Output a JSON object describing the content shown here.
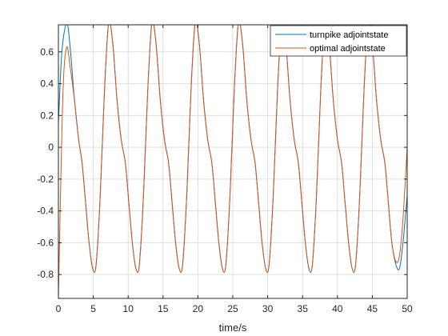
{
  "chart_data": {
    "type": "line",
    "title": "",
    "xlabel": "time/s",
    "ylabel": "",
    "xlim": [
      0,
      50
    ],
    "ylim": [
      -0.95,
      0.77
    ],
    "xticks": [
      0,
      5,
      10,
      15,
      20,
      25,
      30,
      35,
      40,
      45,
      50
    ],
    "yticks": [
      -0.8,
      -0.6,
      -0.4,
      -0.2,
      0,
      0.2,
      0.4,
      0.6
    ],
    "xtick_labels": [
      "0",
      "5",
      "10",
      "15",
      "20",
      "25",
      "30",
      "35",
      "40",
      "45",
      "50"
    ],
    "ytick_labels": [
      "-0.8",
      "-0.6",
      "-0.4",
      "-0.2",
      "0",
      "0.2",
      "0.4",
      "0.6"
    ],
    "grid": true,
    "legend_position": "top-right",
    "series": [
      {
        "name": "turnpike adjointstate",
        "color": "#0072BD",
        "points": [
          [
            0,
            0.15
          ],
          [
            0.5,
            0.6
          ],
          [
            1.2,
            0.78
          ],
          [
            1.7,
            0.62
          ],
          [
            2.3,
            0.3
          ],
          [
            2.9,
            0.05
          ],
          [
            3.4,
            -0.1
          ],
          [
            3.9,
            -0.35
          ],
          [
            4.4,
            -0.6
          ],
          [
            4.9,
            -0.76
          ],
          [
            5.4,
            -0.74
          ],
          [
            6.0,
            -0.3
          ],
          [
            6.6,
            0.35
          ],
          [
            7.2,
            0.78
          ],
          [
            7.8,
            0.65
          ],
          [
            8.4,
            0.3
          ],
          [
            9.0,
            0.05
          ],
          [
            9.6,
            -0.1
          ],
          [
            10.1,
            -0.35
          ],
          [
            10.6,
            -0.6
          ],
          [
            11.1,
            -0.76
          ],
          [
            11.6,
            -0.74
          ],
          [
            12.2,
            -0.3
          ],
          [
            12.8,
            0.35
          ],
          [
            13.4,
            0.78
          ],
          [
            14.0,
            0.65
          ],
          [
            14.6,
            0.3
          ],
          [
            15.2,
            0.05
          ],
          [
            15.8,
            -0.1
          ],
          [
            16.3,
            -0.35
          ],
          [
            16.8,
            -0.6
          ],
          [
            17.3,
            -0.76
          ],
          [
            17.8,
            -0.74
          ],
          [
            18.4,
            -0.3
          ],
          [
            19.0,
            0.35
          ],
          [
            19.6,
            0.78
          ],
          [
            20.2,
            0.65
          ],
          [
            20.8,
            0.3
          ],
          [
            21.4,
            0.05
          ],
          [
            22.0,
            -0.1
          ],
          [
            22.5,
            -0.35
          ],
          [
            23.0,
            -0.6
          ],
          [
            23.5,
            -0.76
          ],
          [
            24.0,
            -0.74
          ],
          [
            24.6,
            -0.3
          ],
          [
            25.2,
            0.35
          ],
          [
            25.8,
            0.78
          ],
          [
            26.4,
            0.65
          ],
          [
            27.0,
            0.3
          ],
          [
            27.6,
            0.05
          ],
          [
            28.2,
            -0.1
          ],
          [
            28.7,
            -0.35
          ],
          [
            29.2,
            -0.6
          ],
          [
            29.7,
            -0.76
          ],
          [
            30.2,
            -0.74
          ],
          [
            30.8,
            -0.3
          ],
          [
            31.4,
            0.35
          ],
          [
            32.0,
            0.78
          ],
          [
            32.6,
            0.65
          ],
          [
            33.2,
            0.3
          ],
          [
            33.8,
            0.05
          ],
          [
            34.4,
            -0.1
          ],
          [
            34.9,
            -0.35
          ],
          [
            35.4,
            -0.6
          ],
          [
            35.9,
            -0.76
          ],
          [
            36.4,
            -0.74
          ],
          [
            37.0,
            -0.3
          ],
          [
            37.6,
            0.35
          ],
          [
            38.2,
            0.78
          ],
          [
            38.8,
            0.65
          ],
          [
            39.4,
            0.3
          ],
          [
            40.0,
            0.05
          ],
          [
            40.6,
            -0.1
          ],
          [
            41.1,
            -0.35
          ],
          [
            41.6,
            -0.6
          ],
          [
            42.1,
            -0.76
          ],
          [
            42.6,
            -0.74
          ],
          [
            43.2,
            -0.3
          ],
          [
            43.8,
            0.35
          ],
          [
            44.4,
            0.78
          ],
          [
            45.0,
            0.65
          ],
          [
            45.6,
            0.3
          ],
          [
            46.2,
            0.05
          ],
          [
            46.8,
            -0.1
          ],
          [
            47.3,
            -0.35
          ],
          [
            47.8,
            -0.6
          ],
          [
            48.4,
            -0.74
          ],
          [
            48.9,
            -0.76
          ],
          [
            49.4,
            -0.6
          ],
          [
            50.0,
            -0.3
          ]
        ]
      },
      {
        "name": "optimal adjointstate",
        "color": "#D95319",
        "points": [
          [
            0,
            -0.95
          ],
          [
            0.3,
            -0.3
          ],
          [
            0.7,
            0.4
          ],
          [
            1.2,
            0.63
          ],
          [
            1.7,
            0.5
          ],
          [
            2.3,
            0.3
          ],
          [
            2.9,
            0.05
          ],
          [
            3.4,
            -0.1
          ],
          [
            3.9,
            -0.35
          ],
          [
            4.4,
            -0.6
          ],
          [
            4.9,
            -0.76
          ],
          [
            5.4,
            -0.74
          ],
          [
            6.0,
            -0.3
          ],
          [
            6.6,
            0.35
          ],
          [
            7.2,
            0.78
          ],
          [
            7.8,
            0.65
          ],
          [
            8.4,
            0.3
          ],
          [
            9.0,
            0.05
          ],
          [
            9.6,
            -0.1
          ],
          [
            10.1,
            -0.35
          ],
          [
            10.6,
            -0.6
          ],
          [
            11.1,
            -0.76
          ],
          [
            11.6,
            -0.74
          ],
          [
            12.2,
            -0.3
          ],
          [
            12.8,
            0.35
          ],
          [
            13.4,
            0.78
          ],
          [
            14.0,
            0.65
          ],
          [
            14.6,
            0.3
          ],
          [
            15.2,
            0.05
          ],
          [
            15.8,
            -0.1
          ],
          [
            16.3,
            -0.35
          ],
          [
            16.8,
            -0.6
          ],
          [
            17.3,
            -0.76
          ],
          [
            17.8,
            -0.74
          ],
          [
            18.4,
            -0.3
          ],
          [
            19.0,
            0.35
          ],
          [
            19.6,
            0.78
          ],
          [
            20.2,
            0.65
          ],
          [
            20.8,
            0.3
          ],
          [
            21.4,
            0.05
          ],
          [
            22.0,
            -0.1
          ],
          [
            22.5,
            -0.35
          ],
          [
            23.0,
            -0.6
          ],
          [
            23.5,
            -0.76
          ],
          [
            24.0,
            -0.74
          ],
          [
            24.6,
            -0.3
          ],
          [
            25.2,
            0.35
          ],
          [
            25.8,
            0.78
          ],
          [
            26.4,
            0.65
          ],
          [
            27.0,
            0.3
          ],
          [
            27.6,
            0.05
          ],
          [
            28.2,
            -0.1
          ],
          [
            28.7,
            -0.35
          ],
          [
            29.2,
            -0.6
          ],
          [
            29.7,
            -0.76
          ],
          [
            30.2,
            -0.74
          ],
          [
            30.8,
            -0.3
          ],
          [
            31.4,
            0.35
          ],
          [
            32.0,
            0.78
          ],
          [
            32.6,
            0.65
          ],
          [
            33.2,
            0.3
          ],
          [
            33.8,
            0.05
          ],
          [
            34.4,
            -0.1
          ],
          [
            34.9,
            -0.35
          ],
          [
            35.4,
            -0.6
          ],
          [
            35.9,
            -0.76
          ],
          [
            36.4,
            -0.74
          ],
          [
            37.0,
            -0.3
          ],
          [
            37.6,
            0.35
          ],
          [
            38.2,
            0.78
          ],
          [
            38.8,
            0.65
          ],
          [
            39.4,
            0.3
          ],
          [
            40.0,
            0.05
          ],
          [
            40.6,
            -0.1
          ],
          [
            41.1,
            -0.35
          ],
          [
            41.6,
            -0.6
          ],
          [
            42.1,
            -0.76
          ],
          [
            42.6,
            -0.74
          ],
          [
            43.2,
            -0.3
          ],
          [
            43.8,
            0.35
          ],
          [
            44.4,
            0.78
          ],
          [
            45.0,
            0.65
          ],
          [
            45.6,
            0.3
          ],
          [
            46.2,
            0.05
          ],
          [
            46.8,
            -0.1
          ],
          [
            47.3,
            -0.35
          ],
          [
            47.8,
            -0.6
          ],
          [
            48.4,
            -0.72
          ],
          [
            48.9,
            -0.68
          ],
          [
            49.4,
            -0.45
          ],
          [
            50.0,
            0.0
          ]
        ]
      }
    ]
  }
}
